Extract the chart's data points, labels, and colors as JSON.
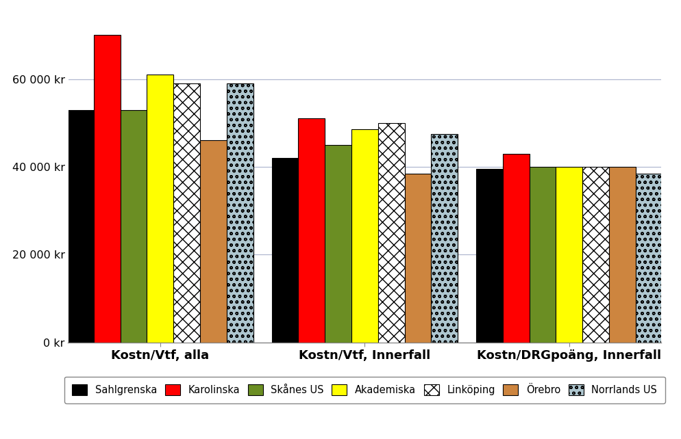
{
  "categories": [
    "Kostn/Vtf, alla",
    "Kostn/Vtf, Innerfall",
    "Kostn/DRGpoäng, Innerfall"
  ],
  "series": [
    {
      "label": "Sahlgrenska",
      "color": "#000000",
      "hatch": null,
      "values": [
        53000,
        42000,
        39500
      ]
    },
    {
      "label": "Karolinska",
      "color": "#ff0000",
      "hatch": null,
      "values": [
        70000,
        51000,
        43000
      ]
    },
    {
      "label": "Skånes US",
      "color": "#6b8e23",
      "hatch": null,
      "values": [
        53000,
        45000,
        40000
      ]
    },
    {
      "label": "Akademiska",
      "color": "#ffff00",
      "hatch": null,
      "values": [
        61000,
        48500,
        40000
      ]
    },
    {
      "label": "Linköping",
      "color": "#000000",
      "hatch": "////",
      "values": [
        59000,
        50000,
        40000
      ]
    },
    {
      "label": "Örebro",
      "color": "#cd853f",
      "hatch": null,
      "values": [
        46000,
        38500,
        40000
      ]
    },
    {
      "label": "Norrlands US",
      "color": "#aec6cf",
      "hatch": "oo",
      "values": [
        59000,
        47500,
        38500
      ]
    }
  ],
  "ylim": [
    0,
    75000
  ],
  "yticks": [
    0,
    20000,
    40000,
    60000
  ],
  "ytick_labels": [
    "0 kr",
    "20 000 kr",
    "40 000 kr",
    "60 000 kr"
  ],
  "bar_width": 0.13,
  "background_color": "#ffffff",
  "grid_color": "#b0b8d0",
  "legend_fontsize": 10.5,
  "tick_fontsize": 11.5
}
